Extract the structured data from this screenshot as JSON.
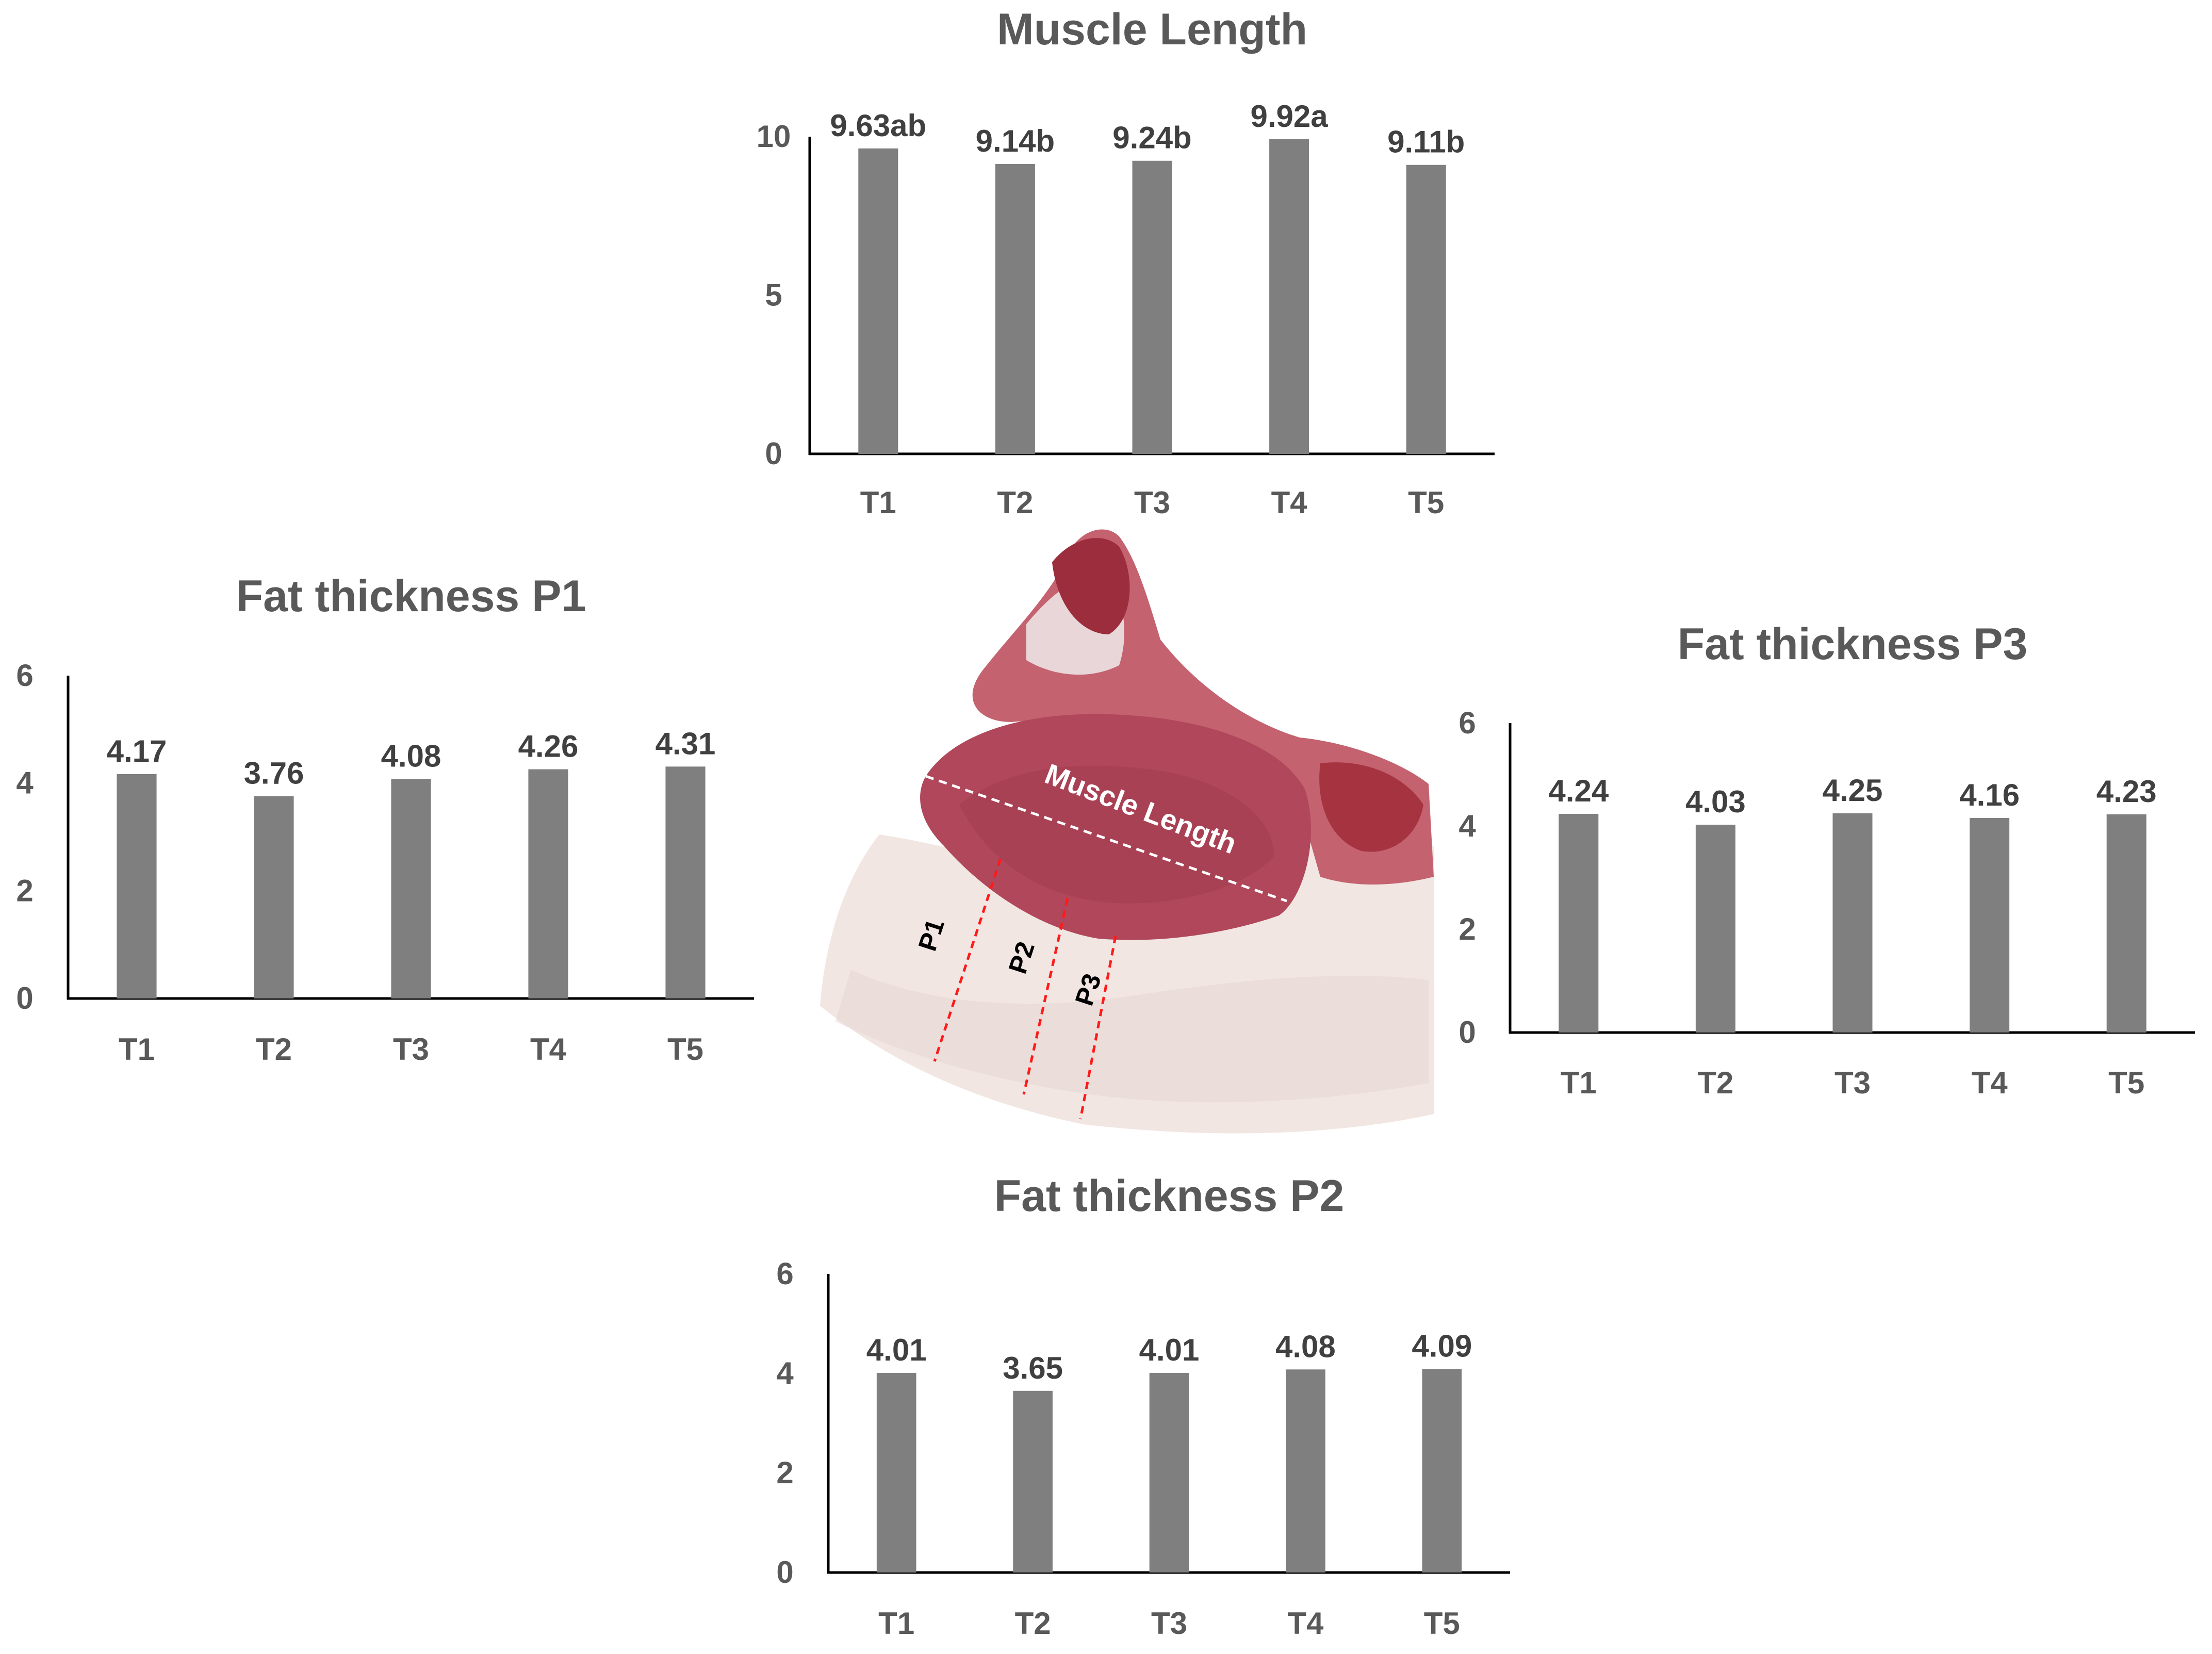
{
  "photo": {
    "muscle_label": "Muscle Length",
    "position_labels": [
      "P1",
      "P2",
      "P3"
    ]
  },
  "colors": {
    "bar": "#7f7f7f",
    "title": "#595959",
    "value_label": "#404040",
    "axis": "#000000"
  },
  "chart_data": [
    {
      "id": "muscle",
      "type": "bar",
      "title": "Muscle Length",
      "categories": [
        "T1",
        "T2",
        "T3",
        "T4",
        "T5"
      ],
      "values": [
        9.63,
        9.14,
        9.24,
        9.92,
        9.11
      ],
      "value_labels": [
        "9.63ab",
        "9.14b",
        "9.24b",
        "9.92a",
        "9.11b"
      ],
      "yticks": [
        0,
        5,
        10
      ],
      "ylim": [
        0,
        10
      ],
      "xlabel": "",
      "ylabel": ""
    },
    {
      "id": "p1",
      "type": "bar",
      "title": "Fat thickness P1",
      "categories": [
        "T1",
        "T2",
        "T3",
        "T4",
        "T5"
      ],
      "values": [
        4.17,
        3.76,
        4.08,
        4.26,
        4.31
      ],
      "value_labels": [
        "4.17",
        "3.76",
        "4.08",
        "4.26",
        "4.31"
      ],
      "yticks": [
        0,
        2,
        4,
        6
      ],
      "ylim": [
        0,
        6
      ],
      "xlabel": "",
      "ylabel": ""
    },
    {
      "id": "p3",
      "type": "bar",
      "title": "Fat thickness P3",
      "categories": [
        "T1",
        "T2",
        "T3",
        "T4",
        "T5"
      ],
      "values": [
        4.24,
        4.03,
        4.25,
        4.16,
        4.23
      ],
      "value_labels": [
        "4.24",
        "4.03",
        "4.25",
        "4.16",
        "4.23"
      ],
      "yticks": [
        0,
        2,
        4,
        6
      ],
      "ylim": [
        0,
        6
      ],
      "xlabel": "",
      "ylabel": ""
    },
    {
      "id": "p2",
      "type": "bar",
      "title": "Fat thickness P2",
      "categories": [
        "T1",
        "T2",
        "T3",
        "T4",
        "T5"
      ],
      "values": [
        4.01,
        3.65,
        4.01,
        4.08,
        4.09
      ],
      "value_labels": [
        "4.01",
        "3.65",
        "4.01",
        "4.08",
        "4.09"
      ],
      "yticks": [
        0,
        2,
        4,
        6
      ],
      "ylim": [
        0,
        6
      ],
      "xlabel": "",
      "ylabel": ""
    }
  ]
}
